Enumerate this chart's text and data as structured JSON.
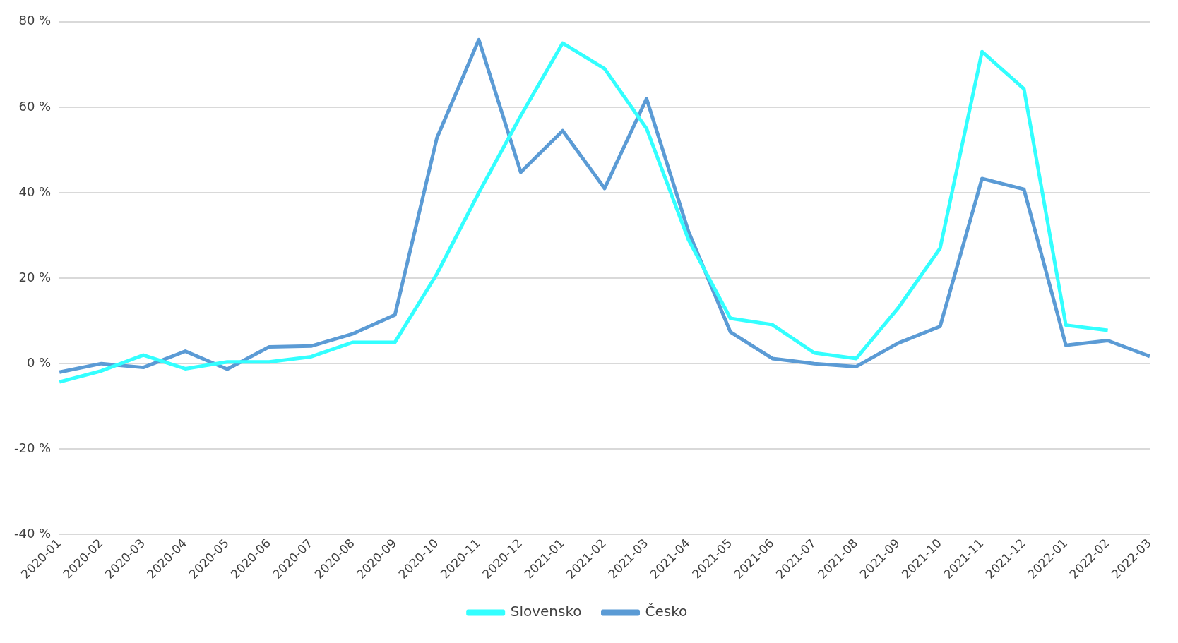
{
  "chart_data": {
    "type": "line",
    "categories": [
      "2020-01",
      "2020-02",
      "2020-03",
      "2020-04",
      "2020-05",
      "2020-06",
      "2020-07",
      "2020-08",
      "2020-09",
      "2020-10",
      "2020-11",
      "2020-12",
      "2021-01",
      "2021-02",
      "2021-03",
      "2021-04",
      "2021-05",
      "2021-06",
      "2021-07",
      "2021-08",
      "2021-09",
      "2021-10",
      "2021-11",
      "2021-12",
      "2022-01",
      "2022-02",
      "2022-03"
    ],
    "series": [
      {
        "name": "Slovensko",
        "color": "#33ffff",
        "values": [
          -4.3,
          -1.7,
          2,
          -1.2,
          0.4,
          0.4,
          1.6,
          5,
          5,
          21,
          40,
          58,
          75,
          69,
          55,
          29,
          10.6,
          9.1,
          2.5,
          1.2,
          13,
          27,
          73,
          64.3,
          9,
          7.8,
          null
        ]
      },
      {
        "name": "Česko",
        "color": "#5b9bd5",
        "values": [
          -2,
          0,
          -0.9,
          2.9,
          -1.3,
          3.9,
          4.1,
          7,
          11.4,
          52.8,
          75.8,
          44.8,
          54.5,
          41,
          62,
          30.9,
          7.4,
          1.2,
          0,
          -0.7,
          4.8,
          8.7,
          43.3,
          40.8,
          4.3,
          5.4,
          1.7
        ]
      }
    ],
    "ylim": [
      -40,
      80
    ],
    "yticks": [
      {
        "value": -40,
        "label": "-40 %"
      },
      {
        "value": -20,
        "label": "-20 %"
      },
      {
        "value": 0,
        "label": "0 %"
      },
      {
        "value": 20,
        "label": "20 %"
      },
      {
        "value": 40,
        "label": "40 %"
      },
      {
        "value": 60,
        "label": "60 %"
      },
      {
        "value": 80,
        "label": "80 %"
      }
    ],
    "grid": "y",
    "legend": "bottom",
    "marker": "none",
    "line_style": "solid"
  }
}
